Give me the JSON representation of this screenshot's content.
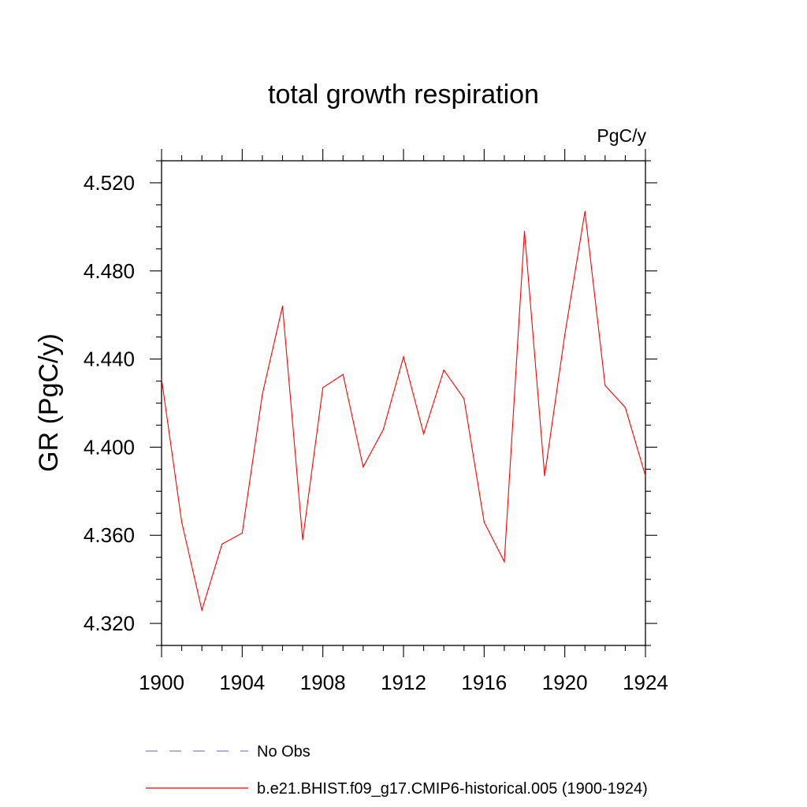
{
  "chart_data": {
    "type": "line",
    "title": "total growth respiration",
    "units": "PgC/y",
    "ylabel": "GR  (PgC/y)",
    "xlim": [
      1900,
      1924
    ],
    "ylim": [
      4.31,
      4.53
    ],
    "x_ticks": [
      1900,
      1904,
      1908,
      1912,
      1916,
      1920,
      1924
    ],
    "x_tick_labels": [
      "1900",
      "1904",
      "1908",
      "1912",
      "1916",
      "1920",
      "1924"
    ],
    "y_ticks": [
      4.32,
      4.36,
      4.4,
      4.44,
      4.48,
      4.52
    ],
    "y_tick_labels": [
      "4.320",
      "4.360",
      "4.400",
      "4.440",
      "4.480",
      "4.520"
    ],
    "grid": false,
    "series": [
      {
        "name": "b.e21.BHIST.f09_g17.CMIP6-historical.005 (1900-1924)",
        "color": "#ff0000",
        "x": [
          1900,
          1901,
          1902,
          1903,
          1904,
          1905,
          1906,
          1907,
          1908,
          1909,
          1910,
          1911,
          1912,
          1913,
          1914,
          1915,
          1916,
          1917,
          1918,
          1919,
          1920,
          1921,
          1922,
          1923,
          1924
        ],
        "y": [
          4.431,
          4.366,
          4.326,
          4.356,
          4.361,
          4.424,
          4.464,
          4.358,
          4.427,
          4.433,
          4.391,
          4.408,
          4.441,
          4.406,
          4.435,
          4.422,
          4.366,
          4.348,
          4.498,
          4.387,
          4.451,
          4.507,
          4.428,
          4.418,
          4.387
        ]
      }
    ],
    "legend": {
      "placement": "bottom",
      "entries": [
        {
          "label": "No Obs",
          "color": "#8080c0",
          "style": "dashed"
        },
        {
          "label": "b.e21.BHIST.f09_g17.CMIP6-historical.005 (1900-1924)",
          "color": "#ff0000",
          "style": "solid"
        }
      ]
    }
  }
}
